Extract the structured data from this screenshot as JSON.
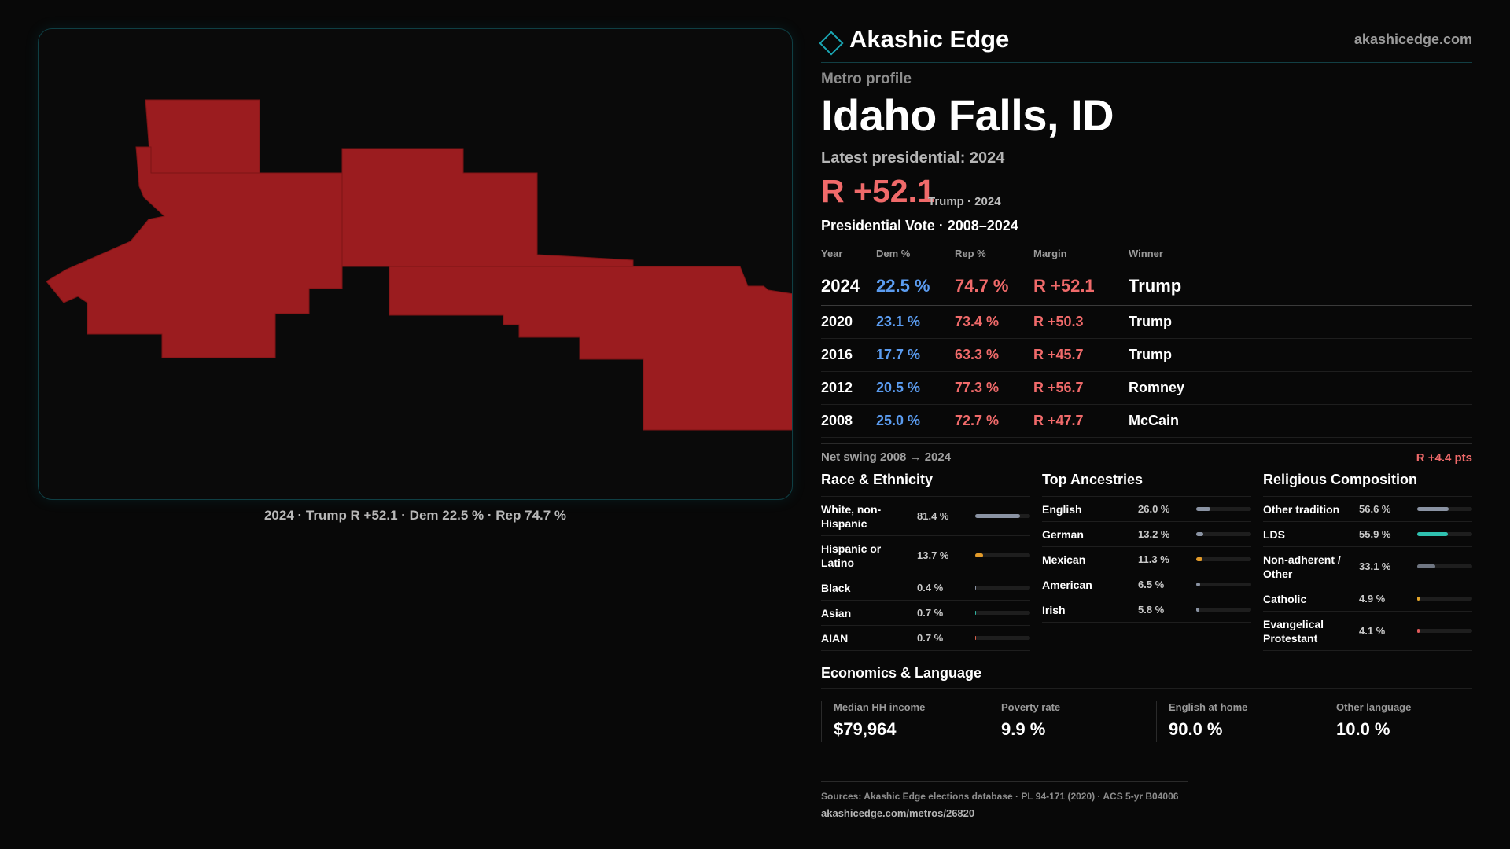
{
  "brand": {
    "name": "Akashic Edge",
    "url": "akashicedge.com"
  },
  "header": {
    "eyebrow": "Metro profile",
    "title": "Idaho Falls, ID",
    "latest": "Latest presidential: 2024",
    "margin": "R +52.1",
    "margin_sub": "Trump · 2024"
  },
  "map": {
    "caption": "2024 · Trump R +52.1 · Dem 22.5 % · Rep 74.7 %",
    "fill_color": "#9b1c1f"
  },
  "vote": {
    "title": "Presidential Vote · 2008–2024",
    "headers": [
      "Year",
      "Dem %",
      "Rep %",
      "Margin",
      "Winner"
    ],
    "rows": [
      {
        "year": "2024",
        "dem": "22.5 %",
        "rep": "74.7 %",
        "margin": "R +52.1",
        "winner": "Trump"
      },
      {
        "year": "2020",
        "dem": "23.1 %",
        "rep": "73.4 %",
        "margin": "R +50.3",
        "winner": "Trump"
      },
      {
        "year": "2016",
        "dem": "17.7 %",
        "rep": "63.3 %",
        "margin": "R +45.7",
        "winner": "Trump"
      },
      {
        "year": "2012",
        "dem": "20.5 %",
        "rep": "77.3 %",
        "margin": "R +56.7",
        "winner": "Romney"
      },
      {
        "year": "2008",
        "dem": "25.0 %",
        "rep": "72.7 %",
        "margin": "R +47.7",
        "winner": "McCain"
      }
    ],
    "swing_label": "Net swing 2008 → 2024",
    "swing_value": "R +4.4 pts"
  },
  "race": {
    "title": "Race & Ethnicity",
    "items": [
      {
        "label": "White, non-Hispanic",
        "value": "81.4 %",
        "pct": 81.4,
        "color": "#8a93a3"
      },
      {
        "label": "Hispanic or Latino",
        "value": "13.7 %",
        "pct": 13.7,
        "color": "#e39b2a"
      },
      {
        "label": "Black",
        "value": "0.4 %",
        "pct": 0.4,
        "color": "#8a93a3"
      },
      {
        "label": "Asian",
        "value": "0.7 %",
        "pct": 0.7,
        "color": "#2fb3a0"
      },
      {
        "label": "AIAN",
        "value": "0.7 %",
        "pct": 0.7,
        "color": "#d9604b"
      }
    ]
  },
  "ancestry": {
    "title": "Top Ancestries",
    "items": [
      {
        "label": "English",
        "value": "26.0 %",
        "pct": 26.0,
        "color": "#8a93a3"
      },
      {
        "label": "German",
        "value": "13.2 %",
        "pct": 13.2,
        "color": "#8a93a3"
      },
      {
        "label": "Mexican",
        "value": "11.3 %",
        "pct": 11.3,
        "color": "#e39b2a"
      },
      {
        "label": "American",
        "value": "6.5 %",
        "pct": 6.5,
        "color": "#8a93a3"
      },
      {
        "label": "Irish",
        "value": "5.8 %",
        "pct": 5.8,
        "color": "#8a93a3"
      }
    ]
  },
  "religion": {
    "title": "Religious Composition",
    "items": [
      {
        "label": "Other tradition",
        "value": "56.6 %",
        "pct": 56.6,
        "color": "#8a93a3"
      },
      {
        "label": "LDS",
        "value": "55.9 %",
        "pct": 55.9,
        "color": "#2fc1b0"
      },
      {
        "label": "Non-adherent / Other",
        "value": "33.1 %",
        "pct": 33.1,
        "color": "#6f7682"
      },
      {
        "label": "Catholic",
        "value": "4.9 %",
        "pct": 4.9,
        "color": "#e3a52a"
      },
      {
        "label": "Evangelical Protestant",
        "value": "4.1 %",
        "pct": 4.1,
        "color": "#e05a5a"
      }
    ]
  },
  "economics": {
    "title": "Economics & Language",
    "cells": [
      {
        "label": "Median HH income",
        "value": "$79,964"
      },
      {
        "label": "Poverty rate",
        "value": "9.9 %"
      },
      {
        "label": "English at home",
        "value": "90.0 %"
      },
      {
        "label": "Other language",
        "value": "10.0 %"
      }
    ]
  },
  "footer": {
    "sources": "Sources: Akashic Edge elections database · PL 94-171 (2020) · ACS 5-yr B04006",
    "url": "akashicedge.com/metros/26820"
  }
}
